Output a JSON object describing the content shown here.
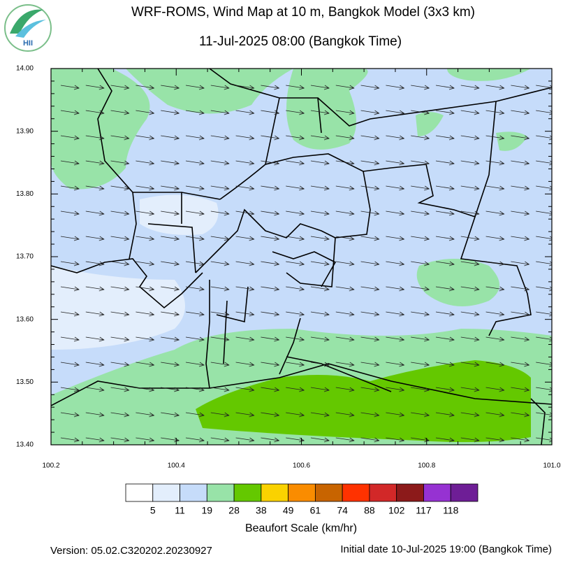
{
  "header": {
    "title": "WRF-ROMS, Wind Map at 10 m, Bangkok Model (3x3 km)",
    "subtitle": "11-Jul-2025 08:00 (Bangkok Time)",
    "logo": "HII"
  },
  "map": {
    "xlim": [
      100.2,
      101.0
    ],
    "ylim": [
      13.4,
      14.0
    ],
    "xticks": [
      100.2,
      100.4,
      100.6,
      100.8,
      {
        "value": 101,
        "label": "101.0"
      }
    ],
    "yticks": [
      {
        "value": 14,
        "label": "14.00"
      },
      {
        "value": 13.9,
        "label": "13.90"
      },
      {
        "value": 13.8,
        "label": "13.80"
      },
      {
        "value": 13.7,
        "label": "13.70"
      },
      {
        "value": 13.6,
        "label": "13.60"
      },
      {
        "value": 13.5,
        "label": "13.50"
      },
      {
        "value": 13.4,
        "label": "13.40"
      }
    ]
  },
  "legend": {
    "title": "Beaufort Scale (km/hr)",
    "colors": [
      "#ffffff",
      "#e3eefc",
      "#c6dcfa",
      "#98e3a8",
      "#64c800",
      "#fad200",
      "#fa8c00",
      "#c86400",
      "#ff3200",
      "#d22828",
      "#8c1a1a",
      "#9632d2",
      "#6e1e96"
    ],
    "labels": [
      5,
      11,
      19,
      28,
      38,
      49,
      61,
      74,
      88,
      102,
      117,
      118
    ]
  },
  "footer": {
    "version": "Version: 05.02.C320202.20230927",
    "initial_date": "Initial date 10-Jul-2025 19:00 (Bangkok Time)"
  }
}
